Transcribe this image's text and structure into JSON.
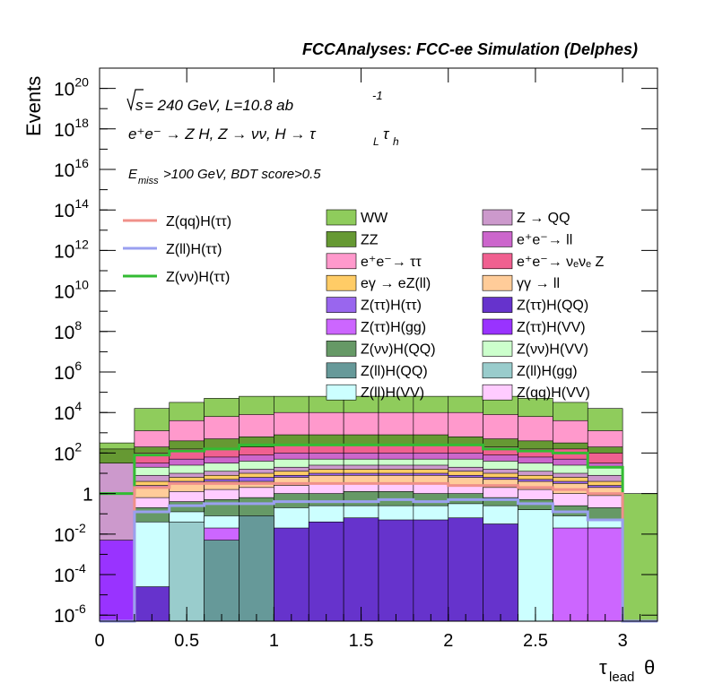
{
  "header_title": "FCCAnalyses: FCC-ee Simulation (Delphes)",
  "ylabel": "Events",
  "xlabel": "τ",
  "xlabel_sub": "lead",
  "xlabel_tail": "θ",
  "annotations": {
    "energy_prefix": "s",
    "energy_text": " = 240 GeV, L=10.8 ab",
    "energy_exp": "-1",
    "process_text": "e⁺e⁻ → Z H, Z → νν, H → τ",
    "process_sub1": "L",
    "process_tau2": "τ",
    "process_sub2": "h",
    "cut_prefix": "E",
    "cut_sub": "miss",
    "cut_text": ">100 GeV, BDT score>0.5"
  },
  "legend_lines": [
    {
      "label": "Z(qq)H(ττ)",
      "color": "#f0908a"
    },
    {
      "label": "Z(ll)H(ττ)",
      "color": "#9aa0f0"
    },
    {
      "label": "Z(νν)H(ττ)",
      "color": "#33bb33"
    }
  ],
  "legend_fills": [
    {
      "label": "WW",
      "color": "#8fcc5c"
    },
    {
      "label": "Z → QQ",
      "color": "#cc99cc"
    },
    {
      "label": "ZZ",
      "color": "#669933"
    },
    {
      "label": "e⁺e⁻→ ll",
      "color": "#cc66cc"
    },
    {
      "label": "e⁺e⁻→ ττ",
      "color": "#ff99cc"
    },
    {
      "label": "e⁺e⁻→ νₑνₑ Z",
      "color": "#f06090"
    },
    {
      "label": "eγ → eZ(ll)",
      "color": "#ffcc66"
    },
    {
      "label": "γγ → ll",
      "color": "#ffcc99"
    },
    {
      "label": "Z(ττ)H(ττ)",
      "color": "#9966ee"
    },
    {
      "label": "Z(ττ)H(QQ)",
      "color": "#6633cc"
    },
    {
      "label": "Z(ττ)H(gg)",
      "color": "#cc66ff"
    },
    {
      "label": "Z(ττ)H(VV)",
      "color": "#9933ff"
    },
    {
      "label": "Z(νν)H(QQ)",
      "color": "#669966"
    },
    {
      "label": "Z(νν)H(VV)",
      "color": "#ccffcc"
    },
    {
      "label": "Z(ll)H(QQ)",
      "color": "#669999"
    },
    {
      "label": "Z(ll)H(gg)",
      "color": "#99cccc"
    },
    {
      "label": "Z(ll)H(VV)",
      "color": "#ccffff"
    },
    {
      "label": "Z(qq)H(VV)",
      "color": "#ffccff"
    }
  ],
  "chart_data": {
    "type": "histogram",
    "log_y": true,
    "xlim": [
      0,
      3.2
    ],
    "ylim_exponent": [
      -6.3,
      21
    ],
    "x_ticks": [
      {
        "v": 0,
        "label": "0"
      },
      {
        "v": 0.5,
        "label": "0.5"
      },
      {
        "v": 1,
        "label": "1"
      },
      {
        "v": 1.5,
        "label": "1.5"
      },
      {
        "v": 2,
        "label": "2"
      },
      {
        "v": 2.5,
        "label": "2.5"
      },
      {
        "v": 3,
        "label": "3"
      }
    ],
    "y_ticks": [
      {
        "e": -6,
        "base": "10",
        "exp": "-6"
      },
      {
        "e": -4,
        "base": "10",
        "exp": "-4"
      },
      {
        "e": -2,
        "base": "10",
        "exp": "-2"
      },
      {
        "e": 0,
        "base": "1",
        "exp": ""
      },
      {
        "e": 2,
        "base": "10",
        "exp": "2"
      },
      {
        "e": 4,
        "base": "10",
        "exp": "4"
      },
      {
        "e": 6,
        "base": "10",
        "exp": "6"
      },
      {
        "e": 8,
        "base": "10",
        "exp": "8"
      },
      {
        "e": 10,
        "base": "10",
        "exp": "10"
      },
      {
        "e": 12,
        "base": "10",
        "exp": "12"
      },
      {
        "e": 14,
        "base": "10",
        "exp": "14"
      },
      {
        "e": 16,
        "base": "10",
        "exp": "16"
      },
      {
        "e": 18,
        "base": "10",
        "exp": "18"
      },
      {
        "e": 20,
        "base": "10",
        "exp": "20"
      }
    ],
    "bin_edges": [
      0,
      0.2,
      0.4,
      0.6,
      0.8,
      1.0,
      1.2,
      1.4,
      1.6,
      1.8,
      2.0,
      2.2,
      2.4,
      2.6,
      2.8,
      3.0,
      3.2
    ],
    "stack_layers": [
      {
        "name": "Z(ll)H(QQ)",
        "color": "#669999",
        "tops": [
          -6.5,
          -6.5,
          -6.5,
          -2.3,
          -1.1,
          -6.5,
          -6.5,
          -6.5,
          -6.5,
          -6.5,
          -6.5,
          -6.5,
          -6.5,
          -6.5,
          -6.5,
          -6.5
        ]
      },
      {
        "name": "Z(ττ)H(QQ)",
        "color": "#6633cc",
        "tops": [
          -6.5,
          -4.6,
          -6.5,
          -6.5,
          -6.5,
          -1.7,
          -1.4,
          -1.2,
          -1.3,
          -1.3,
          -1.2,
          -1.5,
          -6.5,
          -6.5,
          -6.5,
          -6.5
        ]
      },
      {
        "name": "Z(ll)H(gg)",
        "color": "#99cccc",
        "tops": [
          -6.5,
          -6.5,
          -1.4,
          -6.5,
          -6.5,
          -6.5,
          -6.5,
          -6.5,
          -6.5,
          -6.5,
          -6.5,
          -6.5,
          -6.5,
          -6.5,
          -6.5,
          -6.5
        ]
      },
      {
        "name": "Z(ττ)H(gg)",
        "color": "#cc66ff",
        "tops": [
          -6.5,
          -6.5,
          -6.5,
          -1.7,
          -1.7,
          -6.5,
          -6.5,
          -6.5,
          -6.5,
          -6.5,
          -6.5,
          -6.5,
          -6.5,
          -1.7,
          -1.7,
          -6.5
        ]
      },
      {
        "name": "Z(ττ)H(VV)",
        "color": "#9933ff",
        "tops": [
          -2.3,
          -6.5,
          -6.5,
          -6.5,
          -6.5,
          -6.5,
          -6.5,
          -6.5,
          -6.5,
          -6.5,
          -6.5,
          -6.5,
          -6.5,
          -6.5,
          -1.7,
          -6.5
        ]
      },
      {
        "name": "Z(ll)H(VV)",
        "color": "#ccffff",
        "tops": [
          -6.5,
          -1.4,
          -0.9,
          -1.1,
          -1.2,
          -0.7,
          -0.6,
          -0.6,
          -0.6,
          -0.6,
          -0.5,
          -0.6,
          -0.8,
          -1.1,
          -1.3,
          -6.5
        ]
      },
      {
        "name": "Z(νν)H(QQ)",
        "color": "#669966",
        "tops": [
          -6.5,
          -0.7,
          -0.4,
          -0.3,
          -0.2,
          0.0,
          0.0,
          0.1,
          0.1,
          0.0,
          0.0,
          -0.2,
          -0.3,
          -0.6,
          -0.7,
          -6.5
        ]
      },
      {
        "name": "Z(qq)H(VV)",
        "color": "#ffccff",
        "tops": [
          -6.5,
          -0.2,
          0.1,
          0.2,
          0.3,
          0.4,
          0.5,
          0.5,
          0.5,
          0.5,
          0.4,
          0.3,
          0.2,
          0.0,
          -0.1,
          -6.5
        ]
      },
      {
        "name": "γγ → ll",
        "color": "#ffcc99",
        "tops": [
          -6.5,
          0.3,
          0.5,
          0.6,
          0.6,
          0.8,
          0.9,
          0.9,
          0.9,
          0.9,
          0.8,
          0.7,
          0.6,
          0.5,
          0.3,
          -6.5
        ]
      },
      {
        "name": "Z(ττ)H(ττ)",
        "color": "#9966ee",
        "tops": [
          -6.5,
          0.4,
          0.6,
          0.7,
          0.8,
          0.9,
          1.0,
          1.0,
          1.0,
          1.0,
          0.9,
          0.8,
          0.7,
          0.6,
          0.4,
          -6.5
        ]
      },
      {
        "name": "eγ → eZ(ll)",
        "color": "#ffcc66",
        "tops": [
          -6.5,
          0.6,
          0.8,
          0.9,
          1.0,
          1.1,
          1.2,
          1.2,
          1.2,
          1.2,
          1.1,
          1.0,
          0.9,
          0.8,
          0.6,
          -6.5
        ]
      },
      {
        "name": "Z → QQ",
        "color": "#cc99cc",
        "tops": [
          1.5,
          0.9,
          1.0,
          1.1,
          1.2,
          1.3,
          1.4,
          1.4,
          1.4,
          1.4,
          1.3,
          1.2,
          1.1,
          1.0,
          0.9,
          -6.5
        ]
      },
      {
        "name": "Z(νν)H(VV)",
        "color": "#ccffcc",
        "tops": [
          -6.5,
          1.3,
          1.4,
          1.5,
          1.6,
          1.7,
          1.7,
          1.7,
          1.7,
          1.7,
          1.7,
          1.6,
          1.5,
          1.4,
          1.3,
          -6.5
        ]
      },
      {
        "name": "e⁺e⁻→ ll",
        "color": "#cc66cc",
        "tops": [
          -6.5,
          1.5,
          1.7,
          1.8,
          1.9,
          2.0,
          2.0,
          2.0,
          2.0,
          2.0,
          2.0,
          1.9,
          1.8,
          1.7,
          1.5,
          -6.5
        ]
      },
      {
        "name": "e⁺e⁻→ νₑνₑ Z",
        "color": "#f06090",
        "tops": [
          -6.5,
          2.0,
          2.2,
          2.2,
          2.3,
          2.4,
          2.4,
          2.4,
          2.4,
          2.4,
          2.4,
          2.3,
          2.2,
          2.2,
          2.0,
          -6.5
        ]
      },
      {
        "name": "ZZ",
        "color": "#669933",
        "tops": [
          2.2,
          2.3,
          2.6,
          2.7,
          2.8,
          2.9,
          2.9,
          2.9,
          2.9,
          2.9,
          2.8,
          2.7,
          2.6,
          2.5,
          2.3,
          -6.5
        ]
      },
      {
        "name": "e⁺e⁻→ ττ",
        "color": "#ff99cc",
        "tops": [
          -6.5,
          3.1,
          3.6,
          3.8,
          3.9,
          4.0,
          4.0,
          4.0,
          4.0,
          4.0,
          4.0,
          3.9,
          3.8,
          3.6,
          3.1,
          -6.5
        ]
      },
      {
        "name": "WW",
        "color": "#8fcc5c",
        "tops": [
          2.5,
          4.2,
          4.5,
          4.7,
          4.8,
          4.8,
          4.8,
          4.8,
          4.8,
          4.8,
          4.8,
          4.8,
          4.7,
          4.5,
          4.2,
          0.0
        ]
      }
    ],
    "signal_lines": [
      {
        "name": "Z(νν)H(ττ)",
        "color": "#33bb33",
        "values": [
          0.0,
          1.9,
          2.1,
          2.2,
          2.4,
          2.4,
          2.4,
          2.4,
          2.4,
          2.4,
          2.4,
          2.2,
          2.1,
          2.0,
          1.3,
          -6.5
        ]
      },
      {
        "name": "Z(qq)H(ττ)",
        "color": "#f0908a",
        "values": [
          -6.5,
          0.3,
          0.5,
          0.5,
          0.5,
          0.5,
          0.5,
          0.5,
          0.5,
          0.5,
          0.4,
          0.4,
          0.3,
          0.2,
          0.0,
          -6.5
        ]
      },
      {
        "name": "Z(ll)H(ττ)",
        "color": "#9aa0f0",
        "values": [
          -6.5,
          -0.9,
          -0.6,
          -0.5,
          -0.5,
          -0.4,
          -0.4,
          -0.4,
          -0.3,
          -0.4,
          -0.3,
          -0.3,
          -0.5,
          -0.9,
          -1.3,
          -6.5
        ]
      }
    ]
  }
}
